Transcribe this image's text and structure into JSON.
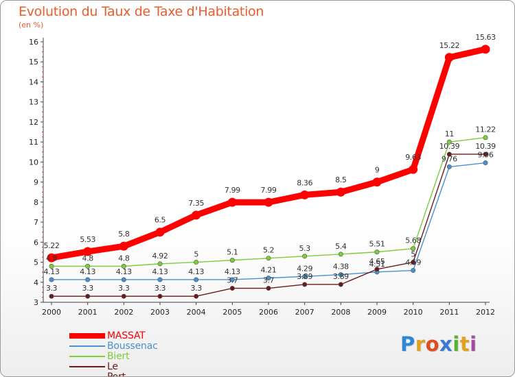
{
  "header": {
    "title": "Evolution du Taux de Taxe d'Habitation",
    "unit": "(en %)"
  },
  "logo": {
    "text": "Proxiti",
    "letters": [
      "P",
      "r",
      "o",
      "x",
      "i",
      "t",
      "i"
    ],
    "colors": [
      "#2f86d6",
      "#e0a020",
      "#e04d1f",
      "#3a7ad4",
      "#5ab030",
      "#e0a020",
      "#a04da0"
    ]
  },
  "chart_data": {
    "type": "line",
    "title": "Evolution du Taux de Taxe d'Habitation",
    "ylabel": "(en %)",
    "xlabel": "",
    "x": [
      "2000",
      "2001",
      "2002",
      "2003",
      "2004",
      "2005",
      "2006",
      "2007",
      "2008",
      "2009",
      "2010",
      "2011",
      "2012"
    ],
    "ylim": [
      3,
      16
    ],
    "yticks": [
      3,
      4,
      5,
      6,
      7,
      8,
      9,
      10,
      11,
      12,
      13,
      14,
      15,
      16
    ],
    "grid": false,
    "legend_position": "bottom-left",
    "series": [
      {
        "name": "MASSAT",
        "color": "#ff0000",
        "values": [
          5.22,
          5.53,
          5.8,
          6.5,
          7.35,
          7.99,
          7.99,
          8.36,
          8.5,
          9,
          9.63,
          15.22,
          15.63
        ],
        "labels": [
          "5.22",
          "5.53",
          "5.8",
          "6.5",
          "7.35",
          "7.99",
          "7.99",
          "8.36",
          "8.5",
          "9",
          "9.63",
          "15.22",
          "15.63"
        ]
      },
      {
        "name": "Boussenac",
        "color": "#4a8fd0",
        "values": [
          4.13,
          4.13,
          4.13,
          4.13,
          4.13,
          4.13,
          4.21,
          4.29,
          4.38,
          4.51,
          4.59,
          9.76,
          9.96
        ],
        "labels": [
          "4.13",
          "4.13",
          "4.13",
          "4.13",
          "4.13",
          "4.13",
          "4.21",
          "4.29",
          "4.38",
          "4.51",
          "4.59",
          "9.76",
          "9.96"
        ]
      },
      {
        "name": "Biert",
        "color": "#7ccd3a",
        "values": [
          4.8,
          4.8,
          4.8,
          4.92,
          5,
          5.1,
          5.2,
          5.3,
          5.4,
          5.51,
          5.68,
          11,
          11.22
        ],
        "labels": [
          "4.8",
          "4.8",
          "4.8",
          "4.92",
          "5",
          "5.1",
          "5.2",
          "5.3",
          "5.4",
          "5.51",
          "5.68",
          "11",
          "11.22"
        ]
      },
      {
        "name": "Le Port",
        "color": "#6b1a1a",
        "values": [
          3.3,
          3.3,
          3.3,
          3.3,
          3.3,
          3.7,
          3.7,
          3.89,
          3.89,
          4.65,
          5,
          10.39,
          10.39
        ],
        "labels": [
          "3.3",
          "3.3",
          "3.3",
          "3.3",
          "3.3",
          "3.7",
          "3.7",
          "3.89",
          "3.89",
          "4.65",
          "5",
          "10.39",
          "10.39"
        ]
      }
    ]
  }
}
